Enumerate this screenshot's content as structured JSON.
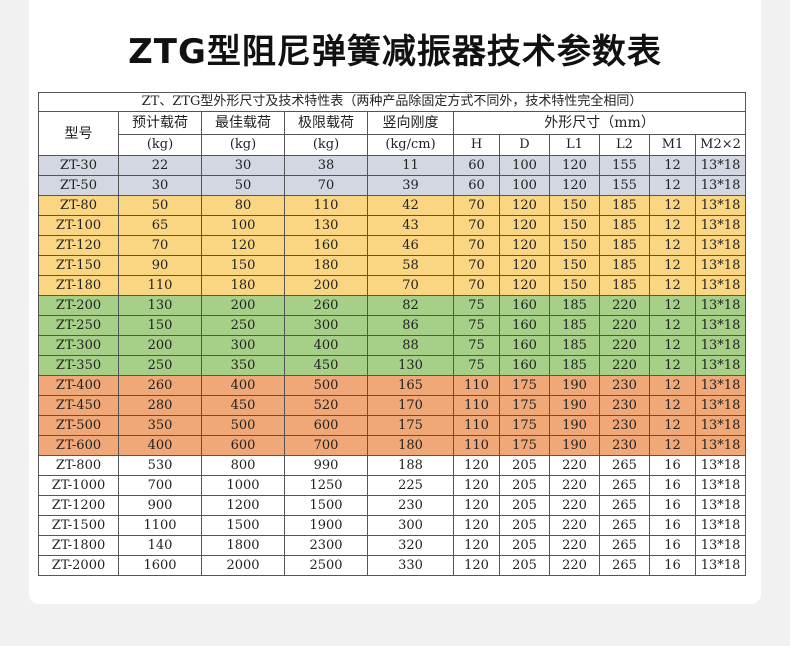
{
  "title": "ZTG型阻尼弹簧减振器技术参数表",
  "table": {
    "caption": "ZT、ZTG型外形尺寸及技术特性表（两种产品除固定方式不同外，技术特性完全相同）",
    "headers": {
      "model": "型号",
      "preload": "预计载荷",
      "optimal": "最佳载荷",
      "limit": "极限载荷",
      "stiffness": "竖向刚度",
      "dims": "外形尺寸（mm）",
      "unit_kg1": "(kg)",
      "unit_kg2": "(kg)",
      "unit_kg3": "(kg)",
      "unit_stiff": "(kg/cm)",
      "H": "H",
      "D": "D",
      "L1": "L1",
      "L2": "L2",
      "M1": "M1",
      "M2": "M2×2"
    },
    "rows": [
      [
        "ZT-30",
        "22",
        "30",
        "38",
        "11",
        "60",
        "100",
        "120",
        "155",
        "12",
        "13*18"
      ],
      [
        "ZT-50",
        "30",
        "50",
        "70",
        "39",
        "60",
        "100",
        "120",
        "155",
        "12",
        "13*18"
      ],
      [
        "ZT-80",
        "50",
        "80",
        "110",
        "42",
        "70",
        "120",
        "150",
        "185",
        "12",
        "13*18"
      ],
      [
        "ZT-100",
        "65",
        "100",
        "130",
        "43",
        "70",
        "120",
        "150",
        "185",
        "12",
        "13*18"
      ],
      [
        "ZT-120",
        "70",
        "120",
        "160",
        "46",
        "70",
        "120",
        "150",
        "185",
        "12",
        "13*18"
      ],
      [
        "ZT-150",
        "90",
        "150",
        "180",
        "58",
        "70",
        "120",
        "150",
        "185",
        "12",
        "13*18"
      ],
      [
        "ZT-180",
        "110",
        "180",
        "200",
        "70",
        "70",
        "120",
        "150",
        "185",
        "12",
        "13*18"
      ],
      [
        "ZT-200",
        "130",
        "200",
        "260",
        "82",
        "75",
        "160",
        "185",
        "220",
        "12",
        "13*18"
      ],
      [
        "ZT-250",
        "150",
        "250",
        "300",
        "86",
        "75",
        "160",
        "185",
        "220",
        "12",
        "13*18"
      ],
      [
        "ZT-300",
        "200",
        "300",
        "400",
        "88",
        "75",
        "160",
        "185",
        "220",
        "12",
        "13*18"
      ],
      [
        "ZT-350",
        "250",
        "350",
        "450",
        "130",
        "75",
        "160",
        "185",
        "220",
        "12",
        "13*18"
      ],
      [
        "ZT-400",
        "260",
        "400",
        "500",
        "165",
        "110",
        "175",
        "190",
        "230",
        "12",
        "13*18"
      ],
      [
        "ZT-450",
        "280",
        "450",
        "520",
        "170",
        "110",
        "175",
        "190",
        "230",
        "12",
        "13*18"
      ],
      [
        "ZT-500",
        "350",
        "500",
        "600",
        "175",
        "110",
        "175",
        "190",
        "230",
        "12",
        "13*18"
      ],
      [
        "ZT-600",
        "400",
        "600",
        "700",
        "180",
        "110",
        "175",
        "190",
        "230",
        "12",
        "13*18"
      ],
      [
        "ZT-800",
        "530",
        "800",
        "990",
        "188",
        "120",
        "205",
        "220",
        "265",
        "16",
        "13*18"
      ],
      [
        "ZT-1000",
        "700",
        "1000",
        "1250",
        "225",
        "120",
        "205",
        "220",
        "265",
        "16",
        "13*18"
      ],
      [
        "ZT-1200",
        "900",
        "1200",
        "1500",
        "230",
        "120",
        "205",
        "220",
        "265",
        "16",
        "13*18"
      ],
      [
        "ZT-1500",
        "1100",
        "1500",
        "1900",
        "300",
        "120",
        "205",
        "220",
        "265",
        "16",
        "13*18"
      ],
      [
        "ZT-1800",
        "140",
        "1800",
        "2300",
        "320",
        "120",
        "205",
        "220",
        "265",
        "16",
        "13*18"
      ],
      [
        "ZT-2000",
        "1600",
        "2000",
        "2500",
        "330",
        "120",
        "205",
        "220",
        "265",
        "16",
        "13*18"
      ]
    ],
    "row_groups": [
      "gray",
      "gray",
      "yellow",
      "yellow",
      "yellow",
      "yellow",
      "yellow",
      "green",
      "green",
      "green",
      "green",
      "orange",
      "orange",
      "orange",
      "orange",
      "white",
      "white",
      "white",
      "white",
      "white",
      "white"
    ]
  },
  "colors": {
    "gray": "#d2d7e1",
    "yellow": "#fad582",
    "green": "#a6cf87",
    "orange": "#f0a878",
    "white": "#ffffff"
  }
}
